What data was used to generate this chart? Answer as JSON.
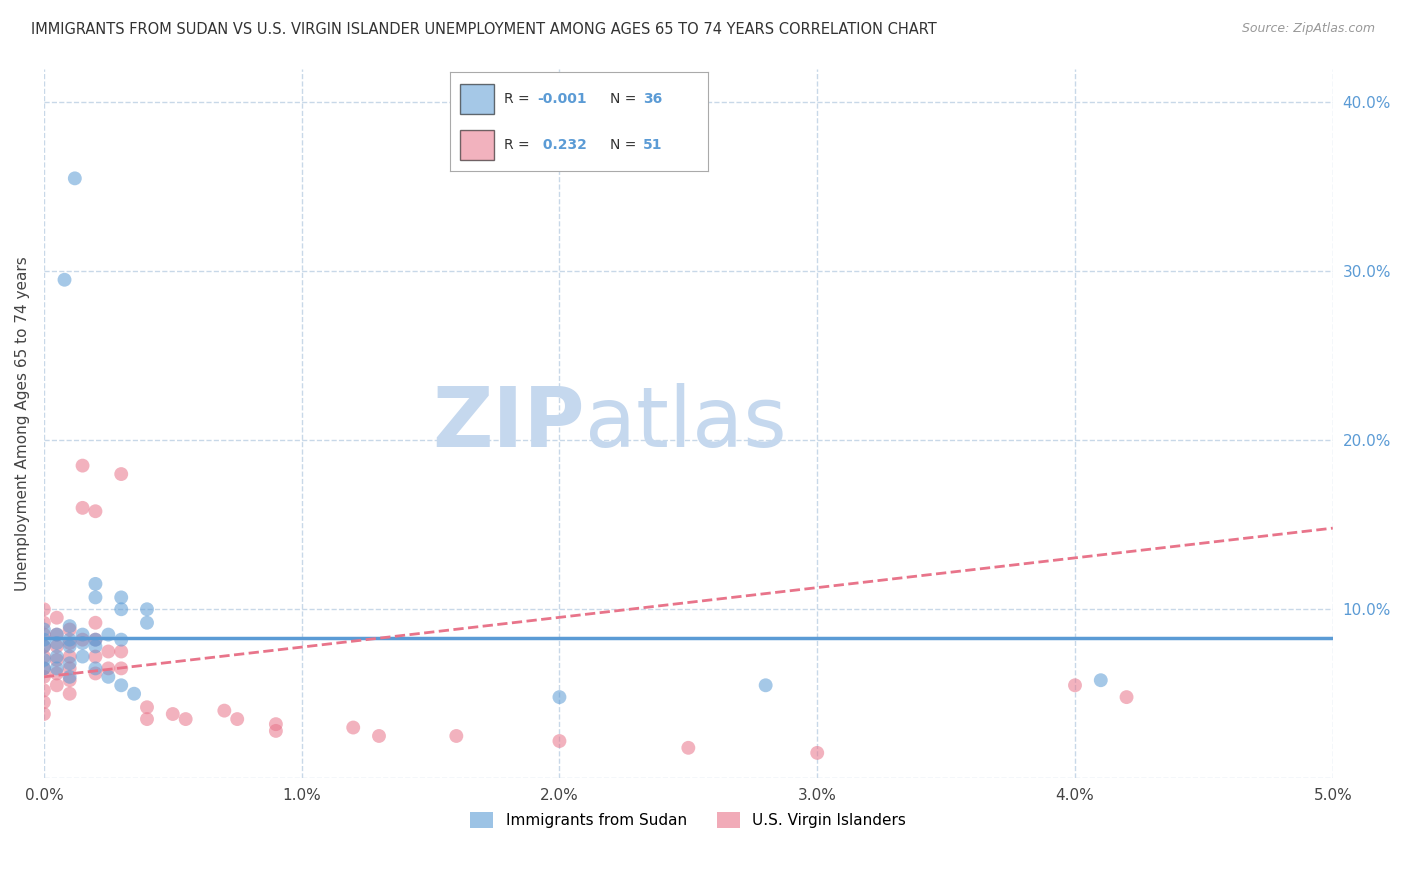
{
  "title": "IMMIGRANTS FROM SUDAN VS U.S. VIRGIN ISLANDER UNEMPLOYMENT AMONG AGES 65 TO 74 YEARS CORRELATION CHART",
  "source": "Source: ZipAtlas.com",
  "ylabel": "Unemployment Among Ages 65 to 74 years",
  "xlim": [
    0.0,
    0.05
  ],
  "ylim": [
    0.0,
    0.42
  ],
  "xticks": [
    0.0,
    0.01,
    0.02,
    0.03,
    0.04,
    0.05
  ],
  "xticklabels": [
    "0.0%",
    "1.0%",
    "2.0%",
    "3.0%",
    "4.0%",
    "5.0%"
  ],
  "yticks_right": [
    0.0,
    0.1,
    0.2,
    0.3,
    0.4
  ],
  "yticklabels_right": [
    "",
    "10.0%",
    "20.0%",
    "30.0%",
    "40.0%"
  ],
  "watermark_zip": "ZIP",
  "watermark_atlas": "atlas",
  "watermark_color_zip": "#c5d8ee",
  "watermark_color_atlas": "#c5d8ee",
  "blue_color": "#5b9bd5",
  "pink_color": "#e8748a",
  "blue_scatter": [
    [
      0.0012,
      0.355
    ],
    [
      0.0008,
      0.295
    ],
    [
      0.002,
      0.115
    ],
    [
      0.002,
      0.107
    ],
    [
      0.003,
      0.107
    ],
    [
      0.003,
      0.1
    ],
    [
      0.004,
      0.1
    ],
    [
      0.004,
      0.092
    ],
    [
      0.0,
      0.088
    ],
    [
      0.0,
      0.082
    ],
    [
      0.0,
      0.078
    ],
    [
      0.0005,
      0.085
    ],
    [
      0.0005,
      0.08
    ],
    [
      0.001,
      0.09
    ],
    [
      0.001,
      0.082
    ],
    [
      0.001,
      0.078
    ],
    [
      0.0015,
      0.085
    ],
    [
      0.0015,
      0.08
    ],
    [
      0.002,
      0.082
    ],
    [
      0.002,
      0.078
    ],
    [
      0.0025,
      0.085
    ],
    [
      0.003,
      0.082
    ],
    [
      0.0,
      0.07
    ],
    [
      0.0,
      0.065
    ],
    [
      0.0005,
      0.072
    ],
    [
      0.0005,
      0.065
    ],
    [
      0.001,
      0.068
    ],
    [
      0.001,
      0.06
    ],
    [
      0.0015,
      0.072
    ],
    [
      0.002,
      0.065
    ],
    [
      0.0025,
      0.06
    ],
    [
      0.003,
      0.055
    ],
    [
      0.0035,
      0.05
    ],
    [
      0.041,
      0.058
    ],
    [
      0.028,
      0.055
    ],
    [
      0.02,
      0.048
    ]
  ],
  "pink_scatter": [
    [
      0.0,
      0.1
    ],
    [
      0.0,
      0.092
    ],
    [
      0.0,
      0.085
    ],
    [
      0.0,
      0.078
    ],
    [
      0.0,
      0.072
    ],
    [
      0.0,
      0.065
    ],
    [
      0.0,
      0.06
    ],
    [
      0.0,
      0.052
    ],
    [
      0.0,
      0.045
    ],
    [
      0.0,
      0.038
    ],
    [
      0.0005,
      0.095
    ],
    [
      0.0005,
      0.085
    ],
    [
      0.0005,
      0.078
    ],
    [
      0.0005,
      0.07
    ],
    [
      0.0005,
      0.062
    ],
    [
      0.0005,
      0.055
    ],
    [
      0.001,
      0.088
    ],
    [
      0.001,
      0.08
    ],
    [
      0.001,
      0.072
    ],
    [
      0.001,
      0.065
    ],
    [
      0.001,
      0.058
    ],
    [
      0.001,
      0.05
    ],
    [
      0.0015,
      0.082
    ],
    [
      0.0015,
      0.185
    ],
    [
      0.0015,
      0.16
    ],
    [
      0.002,
      0.158
    ],
    [
      0.002,
      0.092
    ],
    [
      0.002,
      0.082
    ],
    [
      0.002,
      0.072
    ],
    [
      0.002,
      0.062
    ],
    [
      0.0025,
      0.075
    ],
    [
      0.0025,
      0.065
    ],
    [
      0.003,
      0.18
    ],
    [
      0.003,
      0.075
    ],
    [
      0.003,
      0.065
    ],
    [
      0.004,
      0.042
    ],
    [
      0.004,
      0.035
    ],
    [
      0.005,
      0.038
    ],
    [
      0.0055,
      0.035
    ],
    [
      0.007,
      0.04
    ],
    [
      0.0075,
      0.035
    ],
    [
      0.009,
      0.032
    ],
    [
      0.009,
      0.028
    ],
    [
      0.012,
      0.03
    ],
    [
      0.013,
      0.025
    ],
    [
      0.016,
      0.025
    ],
    [
      0.02,
      0.022
    ],
    [
      0.025,
      0.018
    ],
    [
      0.03,
      0.015
    ],
    [
      0.04,
      0.055
    ],
    [
      0.042,
      0.048
    ]
  ],
  "blue_trend_x": [
    0.0,
    0.05
  ],
  "blue_trend_y": [
    0.083,
    0.083
  ],
  "pink_trend_x": [
    0.0,
    0.05
  ],
  "pink_trend_y": [
    0.06,
    0.148
  ],
  "background_color": "#ffffff",
  "grid_color": "#c8d8e8",
  "figsize": [
    14.06,
    8.92
  ]
}
